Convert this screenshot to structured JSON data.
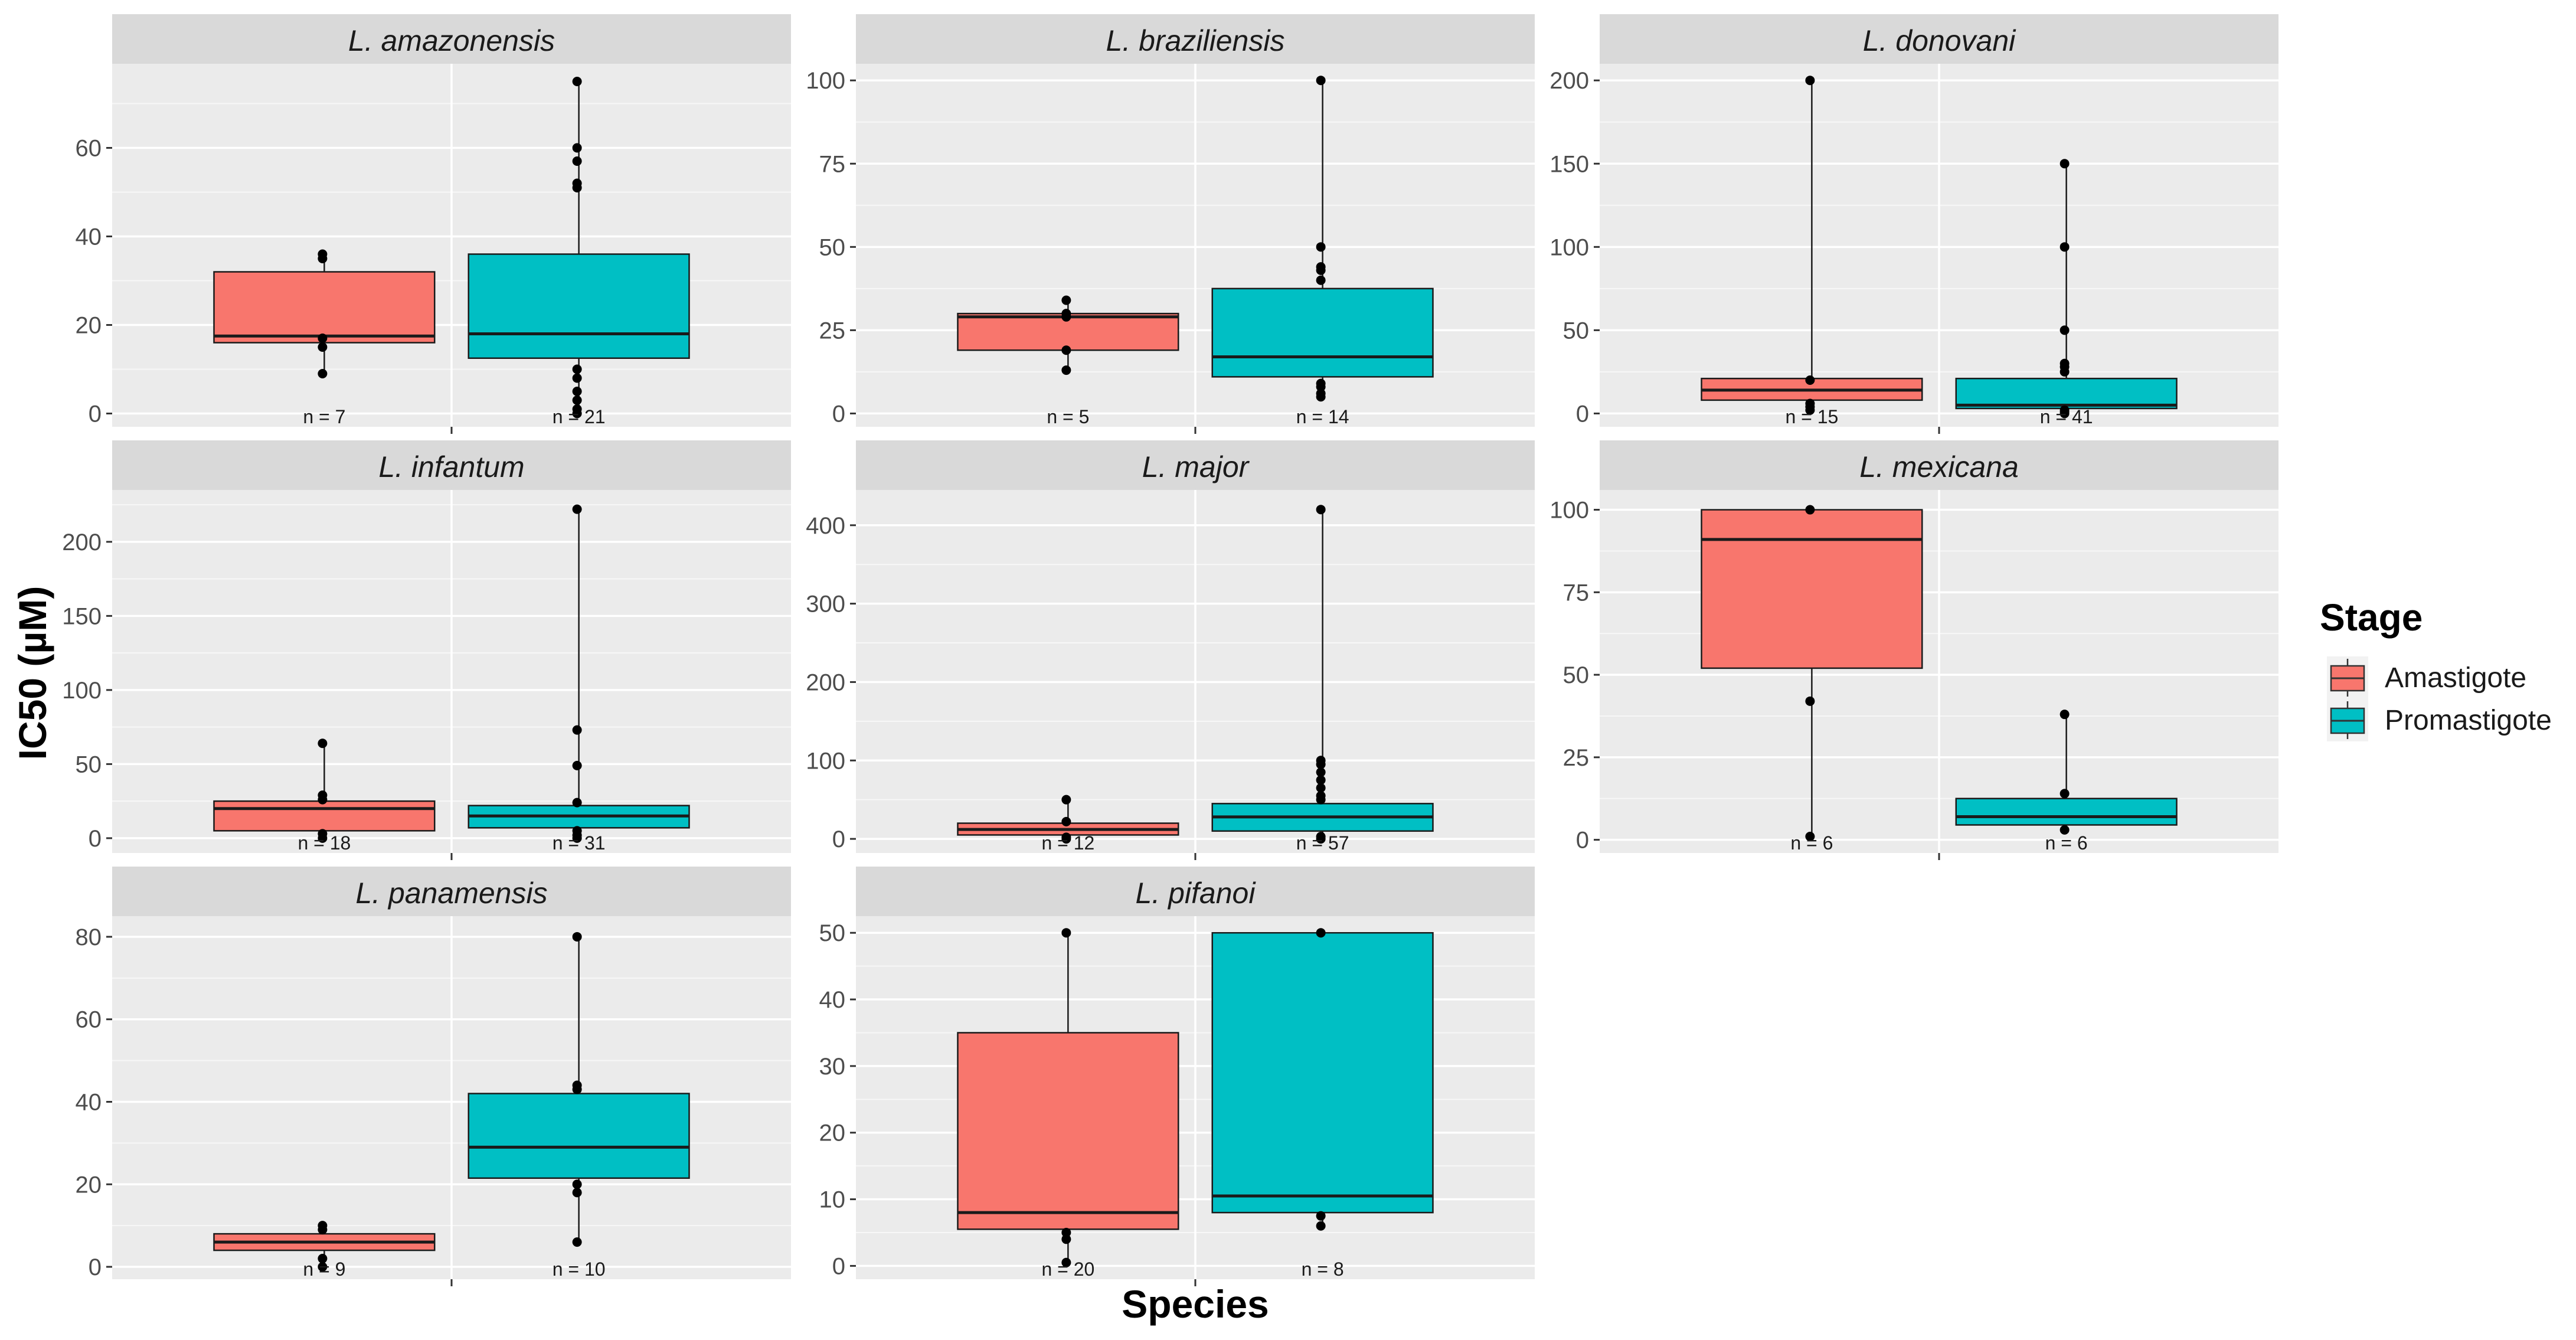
{
  "chart_data": {
    "type": "boxplot",
    "xlabel": "Species",
    "ylabel": "IC50 (µM)",
    "legend": {
      "title": "Stage",
      "position": "right",
      "entries": [
        {
          "label": "Amastigote",
          "color": "#F8766D"
        },
        {
          "label": "Promastigote",
          "color": "#00BFC4"
        }
      ]
    },
    "panels": [
      {
        "species": "L. amazonensis",
        "ylim": [
          -3,
          79
        ],
        "yticks": [
          0,
          20,
          40,
          60
        ],
        "boxes": [
          {
            "stage": "Amastigote",
            "n_label": "n = 7",
            "q1": 16,
            "median": 17.5,
            "q3": 32,
            "whisker_low": 9,
            "whisker_high": 36,
            "points": [
              9,
              15,
              17,
              35,
              36
            ]
          },
          {
            "stage": "Promastigote",
            "n_label": "n = 21",
            "q1": 12.5,
            "median": 18,
            "q3": 36,
            "whisker_low": 0,
            "whisker_high": 75,
            "points": [
              0,
              1,
              3,
              5,
              8,
              10,
              51,
              52,
              57,
              60,
              75
            ]
          }
        ]
      },
      {
        "species": "L. braziliensis",
        "ylim": [
          -4,
          105
        ],
        "yticks": [
          0,
          25,
          50,
          75,
          100
        ],
        "boxes": [
          {
            "stage": "Amastigote",
            "n_label": "n = 5",
            "q1": 19,
            "median": 29,
            "q3": 30,
            "whisker_low": 13,
            "whisker_high": 34,
            "points": [
              13,
              19,
              29,
              30,
              34
            ]
          },
          {
            "stage": "Promastigote",
            "n_label": "n = 14",
            "q1": 11,
            "median": 17,
            "q3": 37.5,
            "whisker_low": 5,
            "whisker_high": 100,
            "points": [
              5,
              6,
              8,
              9,
              40,
              43,
              44,
              50,
              100
            ]
          }
        ]
      },
      {
        "species": "L. donovani",
        "ylim": [
          -8,
          210
        ],
        "yticks": [
          0,
          50,
          100,
          150,
          200
        ],
        "boxes": [
          {
            "stage": "Amastigote",
            "n_label": "n = 15",
            "q1": 8,
            "median": 14,
            "q3": 21,
            "whisker_low": 2,
            "whisker_high": 200,
            "points": [
              2,
              4,
              6,
              20,
              200
            ]
          },
          {
            "stage": "Promastigote",
            "n_label": "n = 41",
            "q1": 3,
            "median": 5,
            "q3": 21,
            "whisker_low": 0,
            "whisker_high": 150,
            "points": [
              0,
              1,
              2,
              25,
              28,
              30,
              50,
              100,
              150
            ]
          }
        ]
      },
      {
        "species": "L. infantum",
        "ylim": [
          -10,
          235
        ],
        "yticks": [
          0,
          50,
          100,
          150,
          200
        ],
        "boxes": [
          {
            "stage": "Amastigote",
            "n_label": "n = 18",
            "q1": 5,
            "median": 20,
            "q3": 25,
            "whisker_low": 0,
            "whisker_high": 64,
            "points": [
              0,
              3,
              26,
              29,
              64
            ]
          },
          {
            "stage": "Promastigote",
            "n_label": "n = 31",
            "q1": 7,
            "median": 15,
            "q3": 22,
            "whisker_low": 0,
            "whisker_high": 222,
            "points": [
              0,
              2,
              5,
              24,
              49,
              73,
              222
            ]
          }
        ]
      },
      {
        "species": "L. major",
        "ylim": [
          -18,
          445
        ],
        "yticks": [
          0,
          100,
          200,
          300,
          400
        ],
        "boxes": [
          {
            "stage": "Amastigote",
            "n_label": "n = 12",
            "q1": 5,
            "median": 12,
            "q3": 20,
            "whisker_low": 0,
            "whisker_high": 50,
            "points": [
              0,
              2,
              22,
              50
            ]
          },
          {
            "stage": "Promastigote",
            "n_label": "n = 57",
            "q1": 10,
            "median": 28,
            "q3": 45,
            "whisker_low": 0,
            "whisker_high": 420,
            "points": [
              0,
              3,
              50,
              55,
              65,
              75,
              85,
              95,
              100,
              420
            ]
          }
        ]
      },
      {
        "species": "L. mexicana",
        "ylim": [
          -4,
          106
        ],
        "yticks": [
          0,
          25,
          50,
          75,
          100
        ],
        "boxes": [
          {
            "stage": "Amastigote",
            "n_label": "n = 6",
            "q1": 52,
            "median": 91,
            "q3": 100,
            "whisker_low": 1,
            "whisker_high": 100,
            "points": [
              1,
              42,
              100
            ]
          },
          {
            "stage": "Promastigote",
            "n_label": "n = 6",
            "q1": 4.5,
            "median": 7,
            "q3": 12.5,
            "whisker_low": 3,
            "whisker_high": 38,
            "points": [
              3,
              14,
              38
            ]
          }
        ]
      },
      {
        "species": "L. panamensis",
        "ylim": [
          -3,
          85
        ],
        "yticks": [
          0,
          20,
          40,
          60,
          80
        ],
        "boxes": [
          {
            "stage": "Amastigote",
            "n_label": "n = 9",
            "q1": 4,
            "median": 6,
            "q3": 8,
            "whisker_low": 0,
            "whisker_high": 10,
            "points": [
              0,
              2,
              9,
              10
            ]
          },
          {
            "stage": "Promastigote",
            "n_label": "n = 10",
            "q1": 21.5,
            "median": 29,
            "q3": 42,
            "whisker_low": 6,
            "whisker_high": 80,
            "points": [
              6,
              18,
              20,
              43,
              44,
              80
            ]
          }
        ]
      },
      {
        "species": "L. pifanoi",
        "ylim": [
          -2,
          52.5
        ],
        "yticks": [
          0,
          10,
          20,
          30,
          40,
          50
        ],
        "boxes": [
          {
            "stage": "Amastigote",
            "n_label": "n = 20",
            "q1": 5.5,
            "median": 8,
            "q3": 35,
            "whisker_low": 0.5,
            "whisker_high": 50,
            "points": [
              0.5,
              4,
              5,
              50
            ]
          },
          {
            "stage": "Promastigote",
            "n_label": "n = 8",
            "q1": 8,
            "median": 10.5,
            "q3": 50,
            "whisker_low": 6,
            "whisker_high": 50,
            "points": [
              6,
              7.5,
              50
            ]
          }
        ]
      }
    ]
  }
}
